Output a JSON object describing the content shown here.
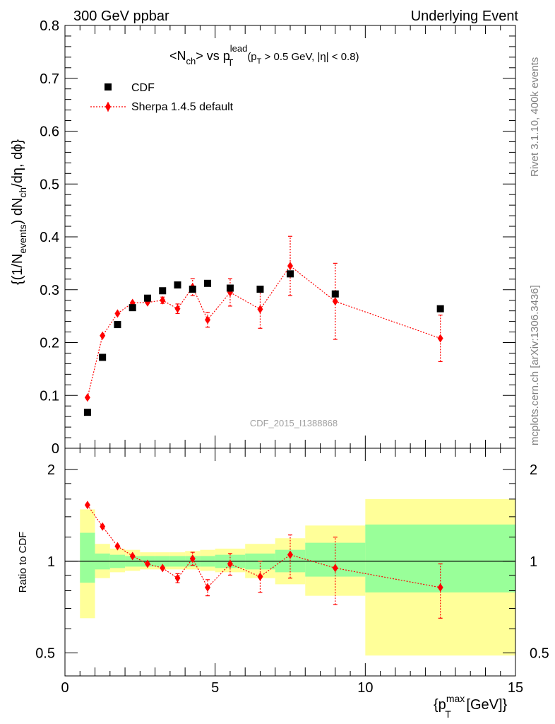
{
  "header": {
    "left": "300 GeV ppbar",
    "right": "Underlying Event"
  },
  "side_labels": {
    "rivet": "Rivet 3.1.10,  400k events",
    "mcplots": "mcplots.cern.ch [arXiv:1306.3436]"
  },
  "watermark": "CDF_2015_I1388868",
  "colors": {
    "data": "#000000",
    "mc": "#ff0000",
    "band_outer": "#ffff99",
    "band_inner": "#99ff99"
  },
  "chart_data": [
    {
      "type": "scatter",
      "panel": "main",
      "title": {
        "t1": "<N",
        "t1_sub": "ch",
        "t2": "> vs p",
        "t2_sup": "lead",
        "t2_sub": "T",
        "t3": "(p",
        "t3_sub": "T",
        "t4": " > 0.5 GeV, |η| < 0.8)"
      },
      "ylabel": {
        "a": "{(1/N",
        "a_sub": "events",
        "b": ") dN",
        "b_sub": "ch",
        "c": "/dη, dϕ}"
      },
      "xlim": [
        0,
        15
      ],
      "ylim": [
        0,
        0.8
      ],
      "y_ticks": [
        "0",
        "0.1",
        "0.2",
        "0.3",
        "0.4",
        "0.5",
        "0.6",
        "0.7",
        "0.8"
      ],
      "legend_position": "top-left",
      "series": [
        {
          "name": "CDF",
          "marker": "square",
          "x": [
            0.75,
            1.25,
            1.75,
            2.25,
            2.75,
            3.25,
            3.75,
            4.25,
            4.75,
            5.5,
            6.5,
            7.5,
            9.0,
            12.5
          ],
          "y": [
            0.068,
            0.172,
            0.234,
            0.266,
            0.284,
            0.298,
            0.309,
            0.301,
            0.312,
            0.303,
            0.301,
            0.33,
            0.292,
            0.264
          ]
        },
        {
          "name": "Sherpa 1.4.5 default",
          "marker": "diamond",
          "x": [
            0.75,
            1.25,
            1.75,
            2.25,
            2.75,
            3.25,
            3.75,
            4.25,
            4.75,
            5.5,
            6.5,
            7.5,
            9.0,
            12.5
          ],
          "y": [
            0.096,
            0.213,
            0.255,
            0.275,
            0.276,
            0.28,
            0.264,
            0.305,
            0.243,
            0.295,
            0.263,
            0.345,
            0.278,
            0.208
          ],
          "yerr": [
            0.002,
            0.002,
            0.002,
            0.003,
            0.004,
            0.006,
            0.009,
            0.016,
            0.014,
            0.026,
            0.036,
            0.056,
            0.072,
            0.044
          ]
        }
      ]
    },
    {
      "type": "scatter",
      "panel": "ratio",
      "ylabel": "Ratio to CDF",
      "xlabel": {
        "a": "{p",
        "a_sup": "max",
        "a_sub": "T",
        "b": " [GeV]}"
      },
      "xlim": [
        0,
        15
      ],
      "ylim": [
        0.42,
        2.35
      ],
      "y_scale": "log",
      "y_ticks": [
        "0.5",
        "1",
        "2"
      ],
      "x_ticks": [
        "0",
        "5",
        "10",
        "15"
      ],
      "reference_line": 1,
      "bands": {
        "edges": [
          0.5,
          1.0,
          1.5,
          2.0,
          2.5,
          3.0,
          3.5,
          4.0,
          4.5,
          5.0,
          6.0,
          7.0,
          8.0,
          10.0,
          15.0
        ],
        "outer_low": [
          0.65,
          0.88,
          0.92,
          0.93,
          0.94,
          0.94,
          0.94,
          0.94,
          0.93,
          0.92,
          0.88,
          0.84,
          0.77,
          0.49
        ],
        "outer_high": [
          1.48,
          1.14,
          1.1,
          1.09,
          1.07,
          1.07,
          1.07,
          1.08,
          1.09,
          1.1,
          1.14,
          1.19,
          1.31,
          1.6
        ],
        "inner_low": [
          0.85,
          0.94,
          0.95,
          0.96,
          0.96,
          0.96,
          0.96,
          0.96,
          0.96,
          0.95,
          0.94,
          0.92,
          0.89,
          0.79
        ],
        "inner_high": [
          1.24,
          1.06,
          1.05,
          1.04,
          1.04,
          1.04,
          1.04,
          1.04,
          1.04,
          1.05,
          1.06,
          1.09,
          1.15,
          1.32
        ]
      },
      "series": [
        {
          "name": "Sherpa 1.4.5 default",
          "x": [
            0.75,
            1.25,
            1.75,
            2.25,
            2.75,
            3.25,
            3.75,
            4.25,
            4.75,
            5.5,
            6.5,
            7.5,
            9.0,
            12.5
          ],
          "y": [
            1.53,
            1.3,
            1.12,
            1.04,
            0.98,
            0.95,
            0.88,
            1.02,
            0.82,
            0.98,
            0.89,
            1.05,
            0.95,
            0.82
          ],
          "ylo": [
            1.5,
            1.28,
            1.11,
            1.03,
            0.97,
            0.93,
            0.85,
            0.97,
            0.77,
            0.9,
            0.79,
            0.88,
            0.72,
            0.65
          ],
          "yhi": [
            1.56,
            1.32,
            1.13,
            1.05,
            0.99,
            0.97,
            0.91,
            1.07,
            0.87,
            1.06,
            1.0,
            1.22,
            1.2,
            0.98
          ]
        }
      ]
    }
  ]
}
